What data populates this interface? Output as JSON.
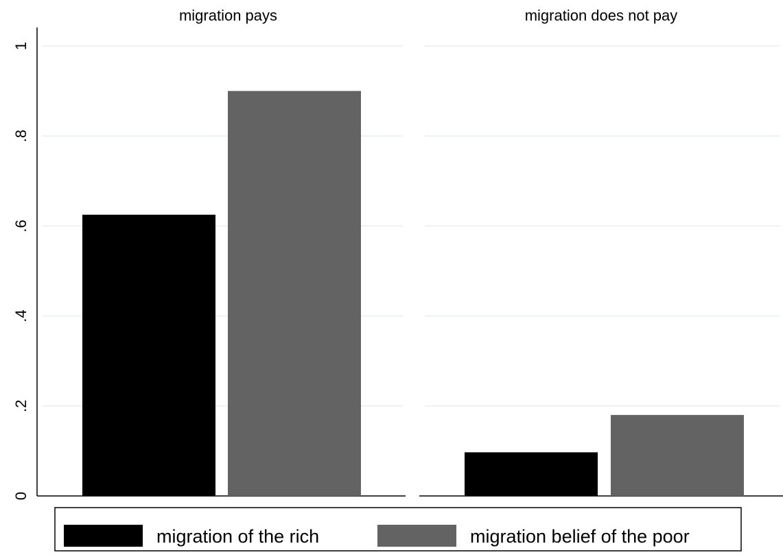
{
  "chart_data": {
    "type": "bar",
    "panels": [
      {
        "title": "migration pays",
        "values": [
          0.625,
          0.9
        ]
      },
      {
        "title": "migration does not pay",
        "values": [
          0.097,
          0.18
        ]
      }
    ],
    "series": [
      {
        "name": "migration of the rich",
        "color": "#000000"
      },
      {
        "name": "migration belief of the poor",
        "color": "#636363"
      }
    ],
    "ylim": [
      0,
      1
    ],
    "yticks": [
      0,
      0.2,
      0.4,
      0.6,
      0.8,
      1
    ],
    "ytick_labels": [
      "0",
      ".2",
      ".4",
      ".6",
      ".8",
      "1"
    ],
    "grid": true,
    "legend_position": "bottom",
    "xlabel": "",
    "ylabel": ""
  }
}
